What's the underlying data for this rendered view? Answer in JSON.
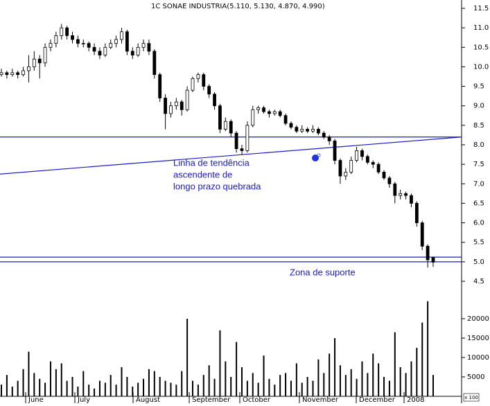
{
  "chart_data": {
    "type": "candlestick",
    "title": "1C SONAE INDUSTRIA(5.110, 5.130, 4.870, 4.990)",
    "months": [
      "June",
      "July",
      "August",
      "September",
      "October",
      "November",
      "December",
      "2008"
    ],
    "ylim": [
      4.3,
      11.7
    ],
    "yticks": [
      {
        "value": 4.5,
        "label": "4.5"
      },
      {
        "value": 5,
        "label": "5.0"
      },
      {
        "value": 5.5,
        "label": "5.5"
      },
      {
        "value": 6,
        "label": "6.0"
      },
      {
        "value": 6.5,
        "label": "6.5"
      },
      {
        "value": 7,
        "label": "7.0"
      },
      {
        "value": 7.5,
        "label": "7.5"
      },
      {
        "value": 8,
        "label": "8.0"
      },
      {
        "value": 8.5,
        "label": "8.5"
      },
      {
        "value": 9,
        "label": "9.0"
      },
      {
        "value": 9.5,
        "label": "9.5"
      },
      {
        "value": 10,
        "label": "10.0"
      },
      {
        "value": 10.5,
        "label": "10.5"
      },
      {
        "value": 11,
        "label": "11.0"
      },
      {
        "value": 11.5,
        "label": "11.5"
      }
    ],
    "candle_color": "#000000",
    "ohlc": [
      [
        9.8,
        9.95,
        9.75,
        9.85
      ],
      [
        9.85,
        9.9,
        9.7,
        9.8
      ],
      [
        9.8,
        9.95,
        9.75,
        9.85
      ],
      [
        9.85,
        9.9,
        9.7,
        9.8
      ],
      [
        9.8,
        10.0,
        9.75,
        9.9
      ],
      [
        9.9,
        10.3,
        9.6,
        10.0
      ],
      [
        10.0,
        10.4,
        9.9,
        10.2
      ],
      [
        10.2,
        10.3,
        9.7,
        10.1
      ],
      [
        10.1,
        10.6,
        10.0,
        10.5
      ],
      [
        10.5,
        10.7,
        10.4,
        10.6
      ],
      [
        10.6,
        10.9,
        10.5,
        10.8
      ],
      [
        10.8,
        11.1,
        10.7,
        11.0
      ],
      [
        11.0,
        11.05,
        10.7,
        10.8
      ],
      [
        10.8,
        10.9,
        10.6,
        10.7
      ],
      [
        10.7,
        10.8,
        10.5,
        10.6
      ],
      [
        10.6,
        10.7,
        10.5,
        10.6
      ],
      [
        10.6,
        10.65,
        10.4,
        10.5
      ],
      [
        10.5,
        10.6,
        10.3,
        10.4
      ],
      [
        10.4,
        10.5,
        10.2,
        10.3
      ],
      [
        10.3,
        10.6,
        10.25,
        10.5
      ],
      [
        10.5,
        10.7,
        10.45,
        10.6
      ],
      [
        10.6,
        10.8,
        10.5,
        10.7
      ],
      [
        10.7,
        11.0,
        10.6,
        10.9
      ],
      [
        10.9,
        10.95,
        10.3,
        10.4
      ],
      [
        10.4,
        10.5,
        10.2,
        10.3
      ],
      [
        10.3,
        10.6,
        10.25,
        10.5
      ],
      [
        10.5,
        10.7,
        10.4,
        10.6
      ],
      [
        10.6,
        10.7,
        10.3,
        10.4
      ],
      [
        10.4,
        10.45,
        9.7,
        9.8
      ],
      [
        9.8,
        9.85,
        9.1,
        9.2
      ],
      [
        9.2,
        9.3,
        8.4,
        8.8
      ],
      [
        8.8,
        9.1,
        8.7,
        9.0
      ],
      [
        9.0,
        9.2,
        8.9,
        9.1
      ],
      [
        9.1,
        9.15,
        8.75,
        8.9
      ],
      [
        8.9,
        9.5,
        8.85,
        9.4
      ],
      [
        9.4,
        9.75,
        9.35,
        9.7
      ],
      [
        9.7,
        9.85,
        9.6,
        9.8
      ],
      [
        9.8,
        9.85,
        9.4,
        9.5
      ],
      [
        9.5,
        9.55,
        9.2,
        9.3
      ],
      [
        9.3,
        9.35,
        8.9,
        9.0
      ],
      [
        9.0,
        9.05,
        8.3,
        8.4
      ],
      [
        8.4,
        8.7,
        8.35,
        8.6
      ],
      [
        8.6,
        8.65,
        8.2,
        8.3
      ],
      [
        8.3,
        8.35,
        7.8,
        7.9
      ],
      [
        7.9,
        8.0,
        7.75,
        7.85
      ],
      [
        7.85,
        8.6,
        7.8,
        8.5
      ],
      [
        8.5,
        9.0,
        8.45,
        8.9
      ],
      [
        8.9,
        9.0,
        8.8,
        8.95
      ],
      [
        8.95,
        9.0,
        8.8,
        8.85
      ],
      [
        8.85,
        8.9,
        8.7,
        8.8
      ],
      [
        8.8,
        8.9,
        8.75,
        8.85
      ],
      [
        8.85,
        8.9,
        8.7,
        8.75
      ],
      [
        8.75,
        8.8,
        8.5,
        8.55
      ],
      [
        8.55,
        8.6,
        8.4,
        8.45
      ],
      [
        8.45,
        8.5,
        8.3,
        8.35
      ],
      [
        8.35,
        8.5,
        8.3,
        8.4
      ],
      [
        8.4,
        8.45,
        8.3,
        8.35
      ],
      [
        8.35,
        8.5,
        8.3,
        8.4
      ],
      [
        8.4,
        8.45,
        8.25,
        8.3
      ],
      [
        8.3,
        8.35,
        8.15,
        8.2
      ],
      [
        8.2,
        8.25,
        8.0,
        8.1
      ],
      [
        8.1,
        8.15,
        7.5,
        7.6
      ],
      [
        7.6,
        7.65,
        7.0,
        7.2
      ],
      [
        7.2,
        7.4,
        7.1,
        7.3
      ],
      [
        7.3,
        7.7,
        7.25,
        7.6
      ],
      [
        7.6,
        7.95,
        7.55,
        7.85
      ],
      [
        7.85,
        7.9,
        7.6,
        7.7
      ],
      [
        7.7,
        7.75,
        7.5,
        7.55
      ],
      [
        7.55,
        7.6,
        7.4,
        7.5
      ],
      [
        7.5,
        7.55,
        7.25,
        7.3
      ],
      [
        7.3,
        7.35,
        7.1,
        7.15
      ],
      [
        7.15,
        7.2,
        6.9,
        7.0
      ],
      [
        7.0,
        7.05,
        6.5,
        6.7
      ],
      [
        6.7,
        6.85,
        6.6,
        6.75
      ],
      [
        6.75,
        6.8,
        6.6,
        6.7
      ],
      [
        6.7,
        6.75,
        6.4,
        6.5
      ],
      [
        6.5,
        6.55,
        5.9,
        6.0
      ],
      [
        6.0,
        6.05,
        5.3,
        5.4
      ],
      [
        5.4,
        5.45,
        4.85,
        5.05
      ],
      [
        5.11,
        5.13,
        4.87,
        4.99
      ]
    ],
    "line_color": "#1a1acc",
    "horizontal_lines": [
      8.2,
      5.12,
      5.0
    ],
    "trend_line": [
      7.25,
      8.2
    ],
    "annotations": [
      "Linha de tendência",
      "ascendente de",
      "longo prazo quebrada",
      "Zona de suporte"
    ],
    "volume": {
      "ylim": [
        0,
        26000
      ],
      "yticks": [
        5000,
        10000,
        15000,
        20000
      ],
      "unit_label": "x 100",
      "color": "#000000",
      "values": [
        3000,
        5500,
        2500,
        4000,
        7000,
        11500,
        6000,
        4500,
        3500,
        9000,
        7000,
        8500,
        4000,
        5000,
        2500,
        6500,
        3000,
        2000,
        4000,
        3500,
        5500,
        3000,
        7500,
        5000,
        2500,
        3500,
        4500,
        7000,
        6500,
        5000,
        4000,
        3500,
        3000,
        6500,
        20000,
        4000,
        3000,
        5500,
        8000,
        4500,
        17000,
        9000,
        5000,
        14000,
        7500,
        4000,
        6000,
        3500,
        10500,
        4500,
        3000,
        5500,
        6000,
        4000,
        8500,
        3500,
        5000,
        4000,
        9500,
        6000,
        11000,
        15000,
        8000,
        5500,
        7000,
        4500,
        9000,
        6000,
        11000,
        8500,
        5000,
        4000,
        16500,
        7500,
        6000,
        9000,
        12500,
        19000,
        24500,
        5500
      ]
    }
  }
}
